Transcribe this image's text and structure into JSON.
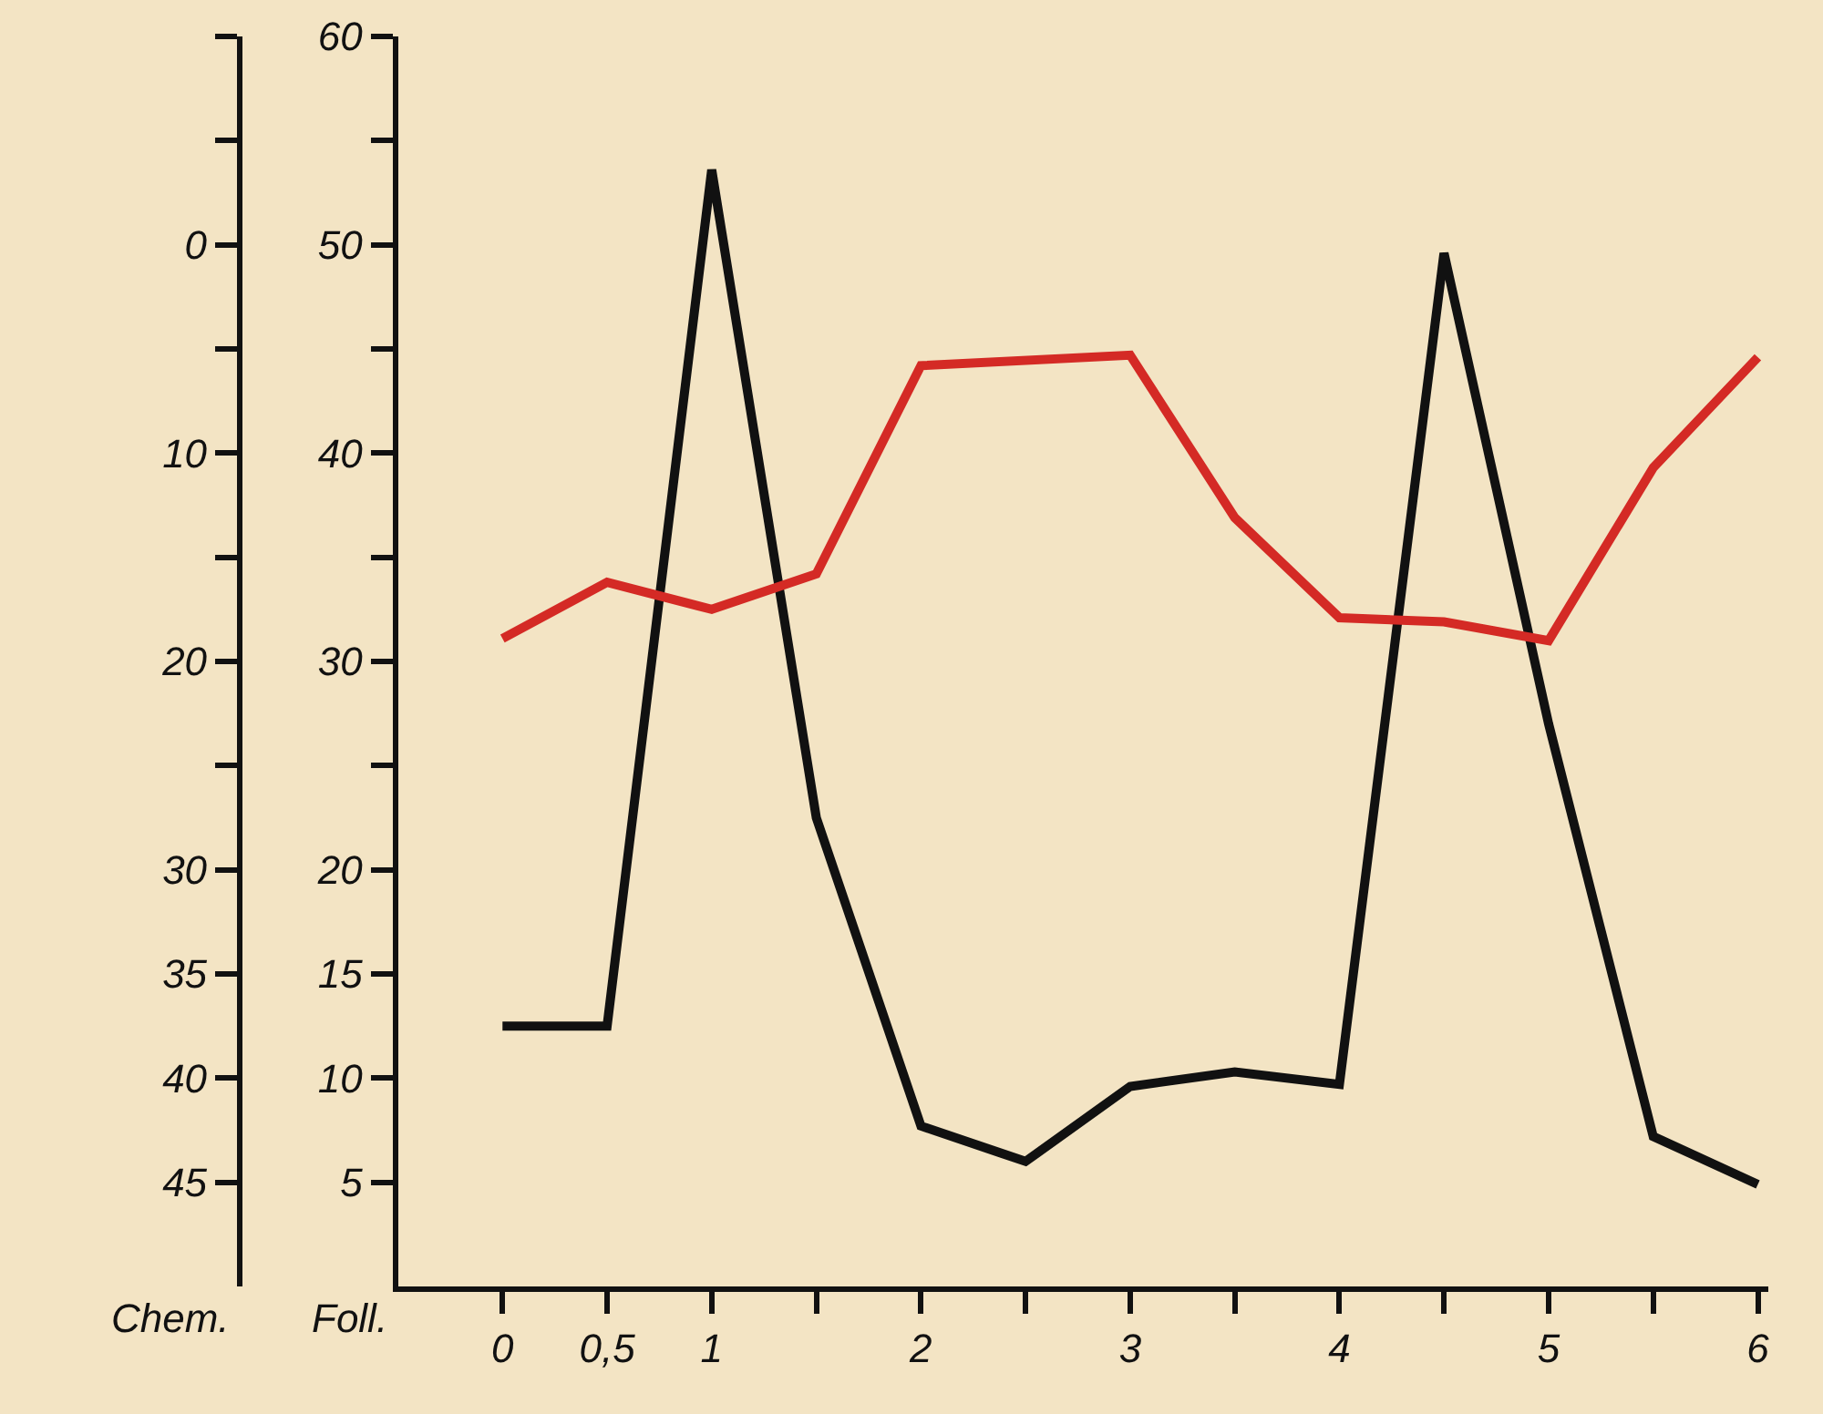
{
  "chart_data": {
    "type": "line",
    "ylabel": "Foll.",
    "y2label": "Chem.",
    "x": [
      0,
      0.5,
      1,
      1.5,
      2,
      2.5,
      3,
      3.5,
      4,
      4.5,
      5,
      5.5,
      6
    ],
    "series": [
      {
        "color": "#111111",
        "values": [
          12.5,
          12.5,
          53.6,
          22.5,
          7.7,
          6,
          9.6,
          10.3,
          9.7,
          49.6,
          27,
          7.2,
          4.9
        ]
      },
      {
        "color": "#d42a25",
        "axis": "y2",
        "x": [
          0,
          0.5,
          1,
          1.5,
          2,
          3,
          3.5,
          4,
          4.5,
          5,
          5.5,
          6
        ],
        "values": [
          18.9,
          16.2,
          17.5,
          15.8,
          5.8,
          5.3,
          13.1,
          17.9,
          18.1,
          19,
          10.7,
          5.4
        ]
      }
    ],
    "xlim": [
      -0.5,
      6.05
    ],
    "xticks": [
      0,
      {
        "value": 0.5,
        "label": "0,5"
      },
      1,
      {
        "value": 1.5,
        "label": null
      },
      2,
      {
        "value": 2.5,
        "label": null
      },
      3,
      {
        "value": 3.5,
        "label": null
      },
      4,
      {
        "value": 4.5,
        "label": null
      },
      5,
      {
        "value": 5.5,
        "label": null
      },
      6
    ],
    "ylim": [
      0,
      60
    ],
    "yticks": [
      5,
      10,
      15,
      20,
      {
        "value": 25,
        "label": null
      },
      30,
      {
        "value": 35,
        "label": null
      },
      40,
      {
        "value": 45,
        "label": null
      },
      50,
      {
        "value": 55,
        "label": null
      },
      60
    ],
    "y2lim": [
      50,
      -10
    ],
    "y2ticks": [
      {
        "value": -10,
        "label": null
      },
      {
        "value": -5,
        "label": null
      },
      0,
      {
        "value": 5,
        "label": null
      },
      10,
      {
        "value": 15,
        "label": null
      },
      20,
      {
        "value": 25,
        "label": null
      },
      30,
      35,
      40,
      45
    ],
    "grid": false,
    "legend": false,
    "marker": "none",
    "line_style": "solid"
  }
}
